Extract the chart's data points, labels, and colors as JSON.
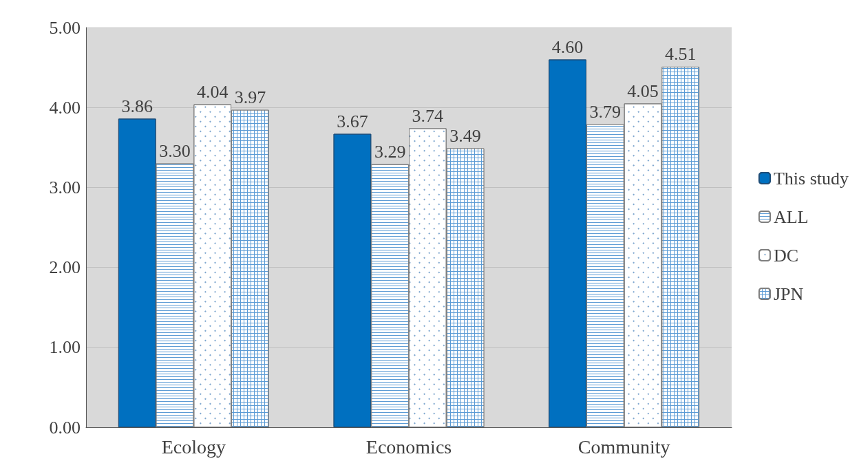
{
  "chart_data": {
    "type": "bar",
    "categories": [
      "Ecology",
      "Economics",
      "Community"
    ],
    "series": [
      {
        "name": "This study",
        "color": "#0070c0",
        "values": [
          3.86,
          3.67,
          4.6
        ],
        "value_labels": [
          "3.86",
          "3.67",
          "4.60"
        ]
      },
      {
        "name": "ALL",
        "color": "#5b9bd5",
        "values": [
          3.3,
          3.29,
          3.79
        ],
        "value_labels": [
          "3.30",
          "3.29",
          "3.79"
        ]
      },
      {
        "name": "DC",
        "color": "#ffffff",
        "values": [
          4.04,
          3.74,
          4.05
        ],
        "value_labels": [
          "4.04",
          "3.74",
          "4.05"
        ]
      },
      {
        "name": "JPN",
        "color": "#5b9bd5",
        "values": [
          3.97,
          3.49,
          4.51
        ],
        "value_labels": [
          "3.97",
          "3.49",
          "4.51"
        ]
      }
    ],
    "ylim": [
      0,
      5
    ],
    "yticks": [
      {
        "value": 0,
        "label": "0.00"
      },
      {
        "value": 1,
        "label": "1.00"
      },
      {
        "value": 2,
        "label": "2.00"
      },
      {
        "value": 3,
        "label": "3.00"
      },
      {
        "value": 4,
        "label": "4.00"
      },
      {
        "value": 5,
        "label": "5.00"
      }
    ],
    "grid": "y",
    "legend": "right"
  }
}
